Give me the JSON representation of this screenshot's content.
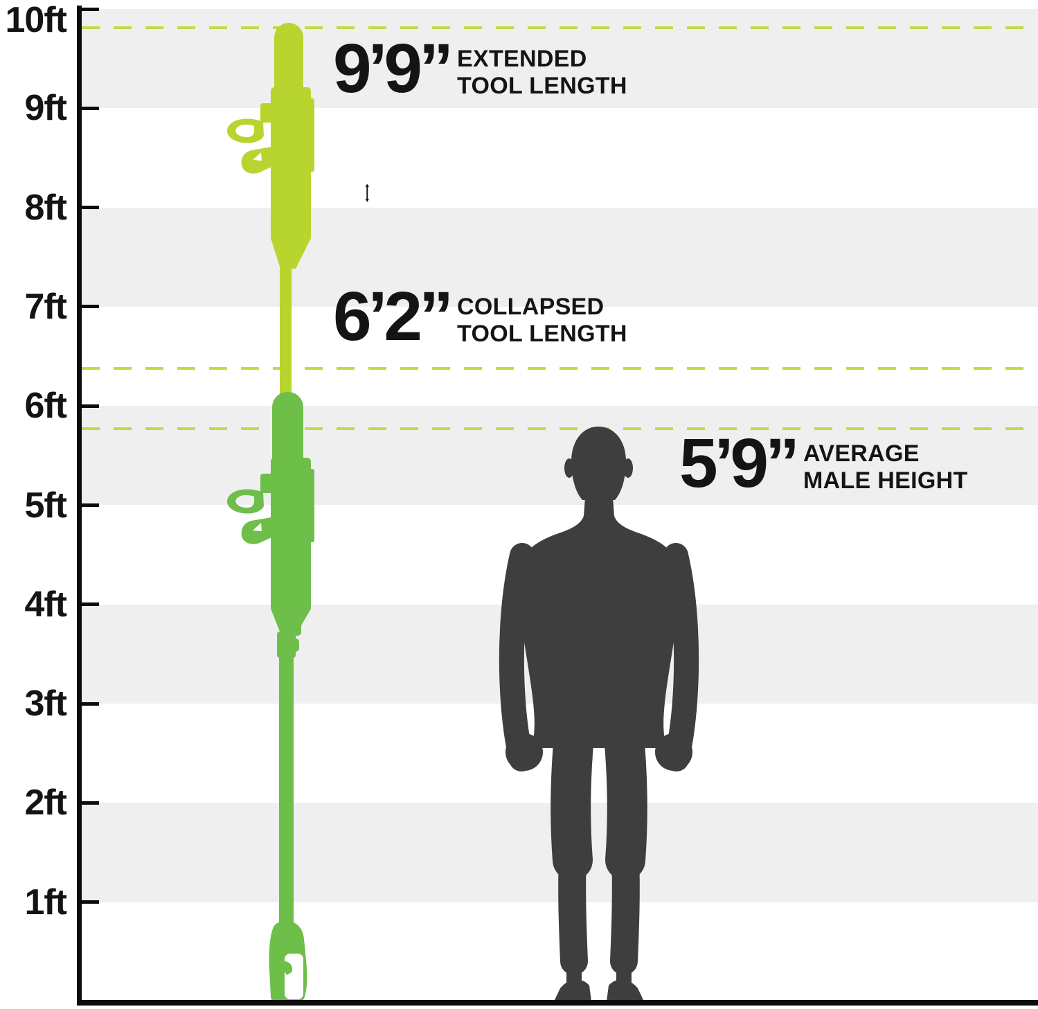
{
  "chart_data": {
    "type": "bar",
    "title": "Tool length vs average male height comparison",
    "categories": [
      "Extended tool length",
      "Collapsed tool length",
      "Average male height"
    ],
    "values_feet": [
      9.75,
      6.17,
      5.75
    ],
    "value_labels": [
      "9’9”",
      "6’2”",
      "5’9”"
    ],
    "xlabel": "",
    "ylabel": "feet",
    "ylim": [
      0,
      10
    ],
    "ytick_labels": [
      "10ft",
      "9ft",
      "8ft",
      "7ft",
      "6ft",
      "5ft",
      "4ft",
      "3ft",
      "2ft",
      "1ft"
    ],
    "grid": "alternating horizontal gray bands; dashed reference line at each measured height",
    "legend": "none"
  },
  "axis": {
    "ticks": [
      {
        "label": "10ft",
        "ft": 10
      },
      {
        "label": "9ft",
        "ft": 9
      },
      {
        "label": "8ft",
        "ft": 8
      },
      {
        "label": "7ft",
        "ft": 7
      },
      {
        "label": "6ft",
        "ft": 6
      },
      {
        "label": "5ft",
        "ft": 5
      },
      {
        "label": "4ft",
        "ft": 4
      },
      {
        "label": "3ft",
        "ft": 3
      },
      {
        "label": "2ft",
        "ft": 2
      },
      {
        "label": "1ft",
        "ft": 1
      }
    ],
    "bands_ft": [
      [
        9,
        10
      ],
      [
        7,
        8
      ],
      [
        5,
        6
      ],
      [
        3,
        4
      ],
      [
        1,
        2
      ]
    ]
  },
  "annotations": {
    "extended": {
      "value": "9’9”",
      "line1": "EXTENDED",
      "line2": "TOOL LENGTH",
      "ft": 9.75
    },
    "collapsed": {
      "value": "6’2”",
      "line1": "COLLAPSED",
      "line2": "TOOL LENGTH",
      "ft": 6.17
    },
    "male": {
      "value": "5’9”",
      "line1": "AVERAGE",
      "line2": "MALE HEIGHT",
      "ft": 5.75
    }
  },
  "icons": {
    "double_arrow": "double-headed-vertical-arrow"
  },
  "colors": {
    "extended_tool": "#b8d42e",
    "collapsed_tool": "#6ebe4a",
    "dashed_line": "#c6d944",
    "band_gray": "#efeff0",
    "silhouette": "#3e3e3e",
    "axis": "#0c0c0c",
    "text": "#141414",
    "background": "#ffffff"
  }
}
